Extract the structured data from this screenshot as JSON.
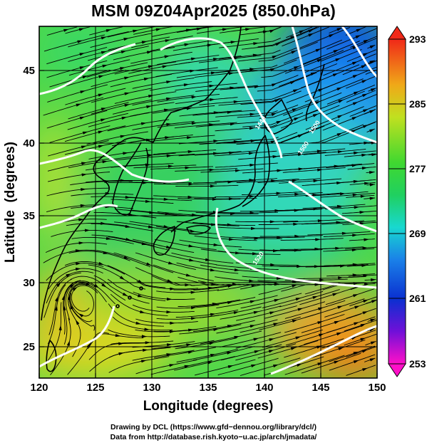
{
  "title": "MSM 09Z04Apr2025 (850.0hPa)",
  "x_axis": {
    "label": "Longitude (degrees)",
    "range": [
      120,
      150
    ],
    "ticks": [
      120,
      125,
      130,
      135,
      140,
      145,
      150
    ],
    "tick_labels": [
      "120",
      "125",
      "130",
      "135",
      "140",
      "145",
      "150"
    ]
  },
  "y_axis": {
    "label": "Latitude  (degrees)",
    "range": [
      22.4,
      47.6
    ],
    "ticks": [
      25,
      30,
      35,
      40,
      45
    ],
    "tick_labels": [
      "25",
      "30",
      "35",
      "40",
      "45"
    ]
  },
  "colorbar": {
    "range": [
      253,
      293
    ],
    "tick_values": [
      253,
      261,
      269,
      277,
      285,
      293
    ],
    "tick_labels": [
      "253",
      "261",
      "269",
      "277",
      "285",
      "293"
    ]
  },
  "contours": {
    "color": "#ffffff",
    "labels": [
      {
        "text": "1440",
        "lon": 139.8,
        "lat": 40.6
      },
      {
        "text": "1500",
        "lon": 144.6,
        "lat": 40.3
      },
      {
        "text": "1500",
        "lon": 143.6,
        "lat": 38.8
      },
      {
        "text": "1520",
        "lon": 139.6,
        "lat": 30.9
      }
    ]
  },
  "streamline_color": "#000000",
  "coastline_color": "#000000",
  "credits": {
    "line1": "Drawing by DCL (https://www.gfd−dennou.org/library/dcl/)",
    "line2": "Data from http://database.rish.kyoto−u.ac.jp/arch/jmadata/"
  }
}
